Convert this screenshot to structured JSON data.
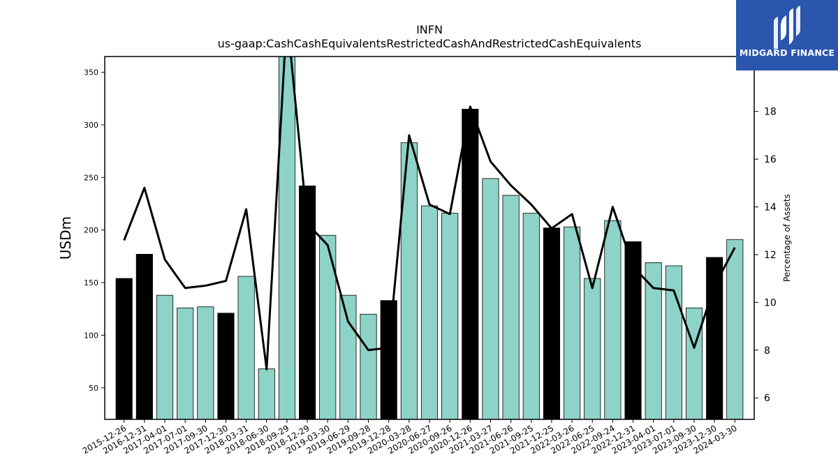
{
  "brand": {
    "name": "MIDGARD FINANCE",
    "bg_color": "#2a56ad"
  },
  "chart_data": {
    "type": "bar",
    "title": "INFN",
    "subtitle": "us-gaap:CashCashEquivalentsRestrictedCashAndRestrictedCashEquivalents",
    "ylabel": "USDm",
    "y2label": "Percentage of Assets",
    "categories": [
      "2015-12-26",
      "2016-12-31",
      "2017-04-01",
      "2017-07-01",
      "2017-09-30",
      "2017-12-30",
      "2018-03-31",
      "2018-06-30",
      "2018-09-29",
      "2018-12-29",
      "2019-03-30",
      "2019-06-29",
      "2019-09-28",
      "2019-12-28",
      "2020-03-28",
      "2020-06-27",
      "2020-09-26",
      "2020-12-26",
      "2021-03-27",
      "2021-06-26",
      "2021-09-25",
      "2021-12-25",
      "2022-03-26",
      "2022-06-25",
      "2022-09-24",
      "2022-12-31",
      "2023-04-01",
      "2023-07-01",
      "2023-09-30",
      "2023-12-30",
      "2024-03-30"
    ],
    "series": [
      {
        "kind": "bar",
        "axis": "left",
        "values": [
          154,
          177,
          138,
          126,
          127,
          121,
          156,
          68,
          370,
          242,
          195,
          138,
          120,
          133,
          283,
          223,
          216,
          315,
          249,
          233,
          216,
          202,
          203,
          154,
          209,
          189,
          169,
          166,
          126,
          174,
          191
        ],
        "annual": [
          true,
          true,
          false,
          false,
          false,
          true,
          false,
          false,
          false,
          true,
          false,
          false,
          false,
          true,
          false,
          false,
          false,
          true,
          false,
          false,
          false,
          true,
          false,
          false,
          false,
          true,
          false,
          false,
          false,
          true,
          false
        ]
      },
      {
        "kind": "line",
        "axis": "right",
        "values": [
          12.6,
          14.8,
          11.8,
          10.6,
          10.7,
          10.9,
          13.9,
          7.2,
          22.0,
          13.3,
          12.4,
          9.2,
          8.0,
          8.1,
          17.0,
          14.1,
          13.7,
          18.2,
          15.9,
          14.9,
          14.1,
          13.1,
          13.7,
          10.6,
          14.0,
          11.5,
          10.6,
          10.5,
          8.1,
          10.7,
          12.3
        ]
      }
    ],
    "ylim": [
      20,
      365
    ],
    "y2lim": [
      5.1,
      20.3
    ],
    "yticks": [
      50,
      100,
      150,
      200,
      250,
      300,
      350
    ],
    "y2ticks": [
      6,
      8,
      10,
      12,
      14,
      16,
      18
    ],
    "colors": {
      "bar_quarterly": "#8dd3c7",
      "bar_annual": "#000000",
      "line": "#000000"
    },
    "grid": false,
    "legend": "none"
  }
}
